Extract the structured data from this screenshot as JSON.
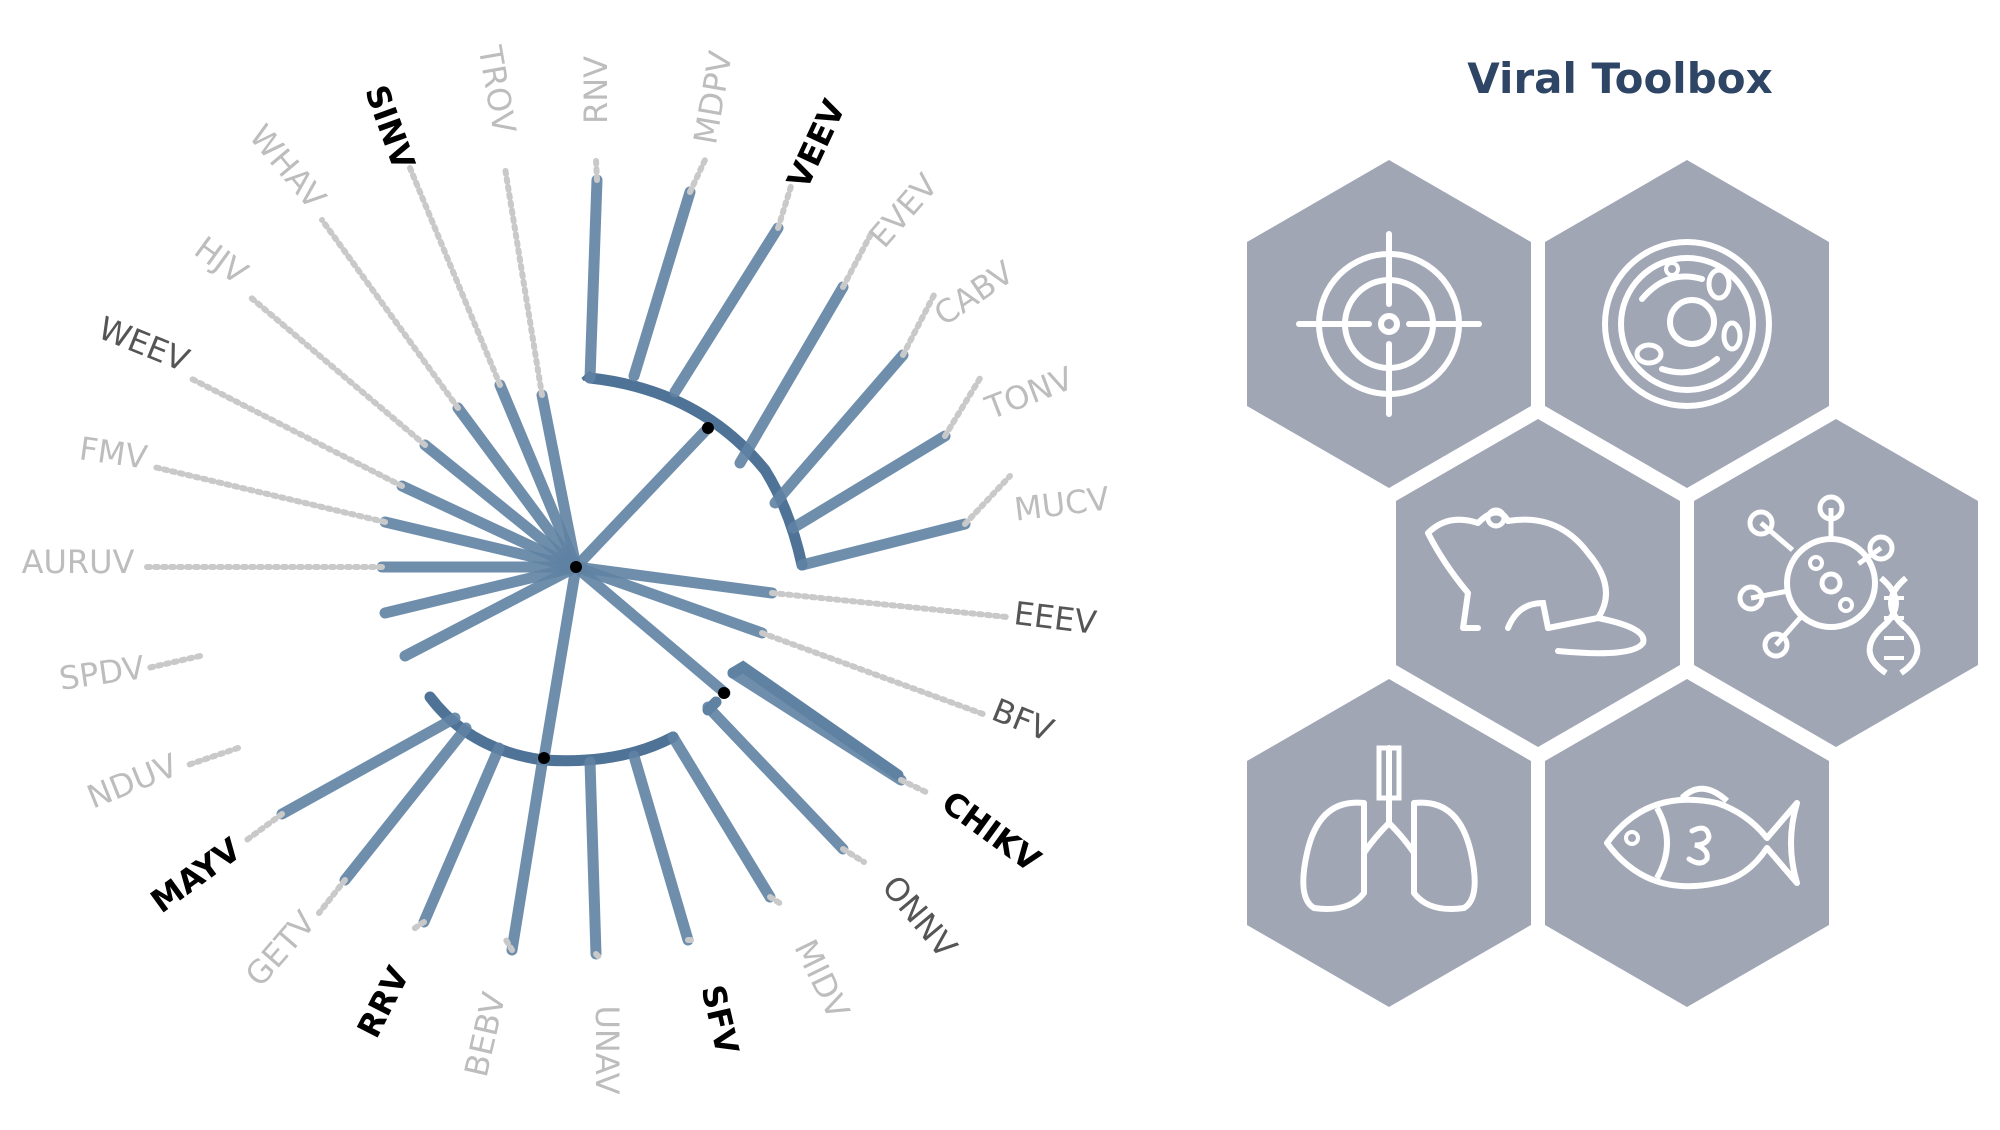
{
  "toolbox": {
    "title": "Viral Toolbox",
    "tile_color": "#a1a6b5",
    "icon_color": "#ffffff",
    "tiles": [
      {
        "id": "target",
        "icon": "target-icon"
      },
      {
        "id": "cell",
        "icon": "cell-icon"
      },
      {
        "id": "mouse",
        "icon": "mouse-icon"
      },
      {
        "id": "virus-dna",
        "icon": "virus-dna-icon"
      },
      {
        "id": "lungs",
        "icon": "lungs-icon"
      },
      {
        "id": "fish",
        "icon": "fish-icon"
      }
    ]
  },
  "tree": {
    "branch_color": "#5f82a3",
    "arc_color": "#4f7397",
    "leader_color": "#c9c9c9",
    "style_colors": {
      "black": "#000000",
      "dark": "#555555",
      "light": "#bdbdbd"
    },
    "taxa": [
      {
        "name": "SINV",
        "style": "black"
      },
      {
        "name": "TROV",
        "style": "light"
      },
      {
        "name": "RNV",
        "style": "light"
      },
      {
        "name": "MDPV",
        "style": "light"
      },
      {
        "name": "VEEV",
        "style": "black"
      },
      {
        "name": "EVEV",
        "style": "light"
      },
      {
        "name": "CABV",
        "style": "light"
      },
      {
        "name": "TONV",
        "style": "light"
      },
      {
        "name": "MUCV",
        "style": "light"
      },
      {
        "name": "EEEV",
        "style": "dark"
      },
      {
        "name": "BFV",
        "style": "dark"
      },
      {
        "name": "CHIKV",
        "style": "black"
      },
      {
        "name": "ONNV",
        "style": "dark"
      },
      {
        "name": "MIDV",
        "style": "light"
      },
      {
        "name": "SFV",
        "style": "black"
      },
      {
        "name": "UNAV",
        "style": "light"
      },
      {
        "name": "BEBV",
        "style": "light"
      },
      {
        "name": "RRV",
        "style": "black"
      },
      {
        "name": "GETV",
        "style": "light"
      },
      {
        "name": "MAYV",
        "style": "black"
      },
      {
        "name": "NDUV",
        "style": "light"
      },
      {
        "name": "SPDV",
        "style": "light"
      },
      {
        "name": "AURUV",
        "style": "light"
      },
      {
        "name": "FMV",
        "style": "light"
      },
      {
        "name": "WEEV",
        "style": "dark"
      },
      {
        "name": "HJV",
        "style": "light"
      },
      {
        "name": "WHAV",
        "style": "light"
      }
    ]
  }
}
